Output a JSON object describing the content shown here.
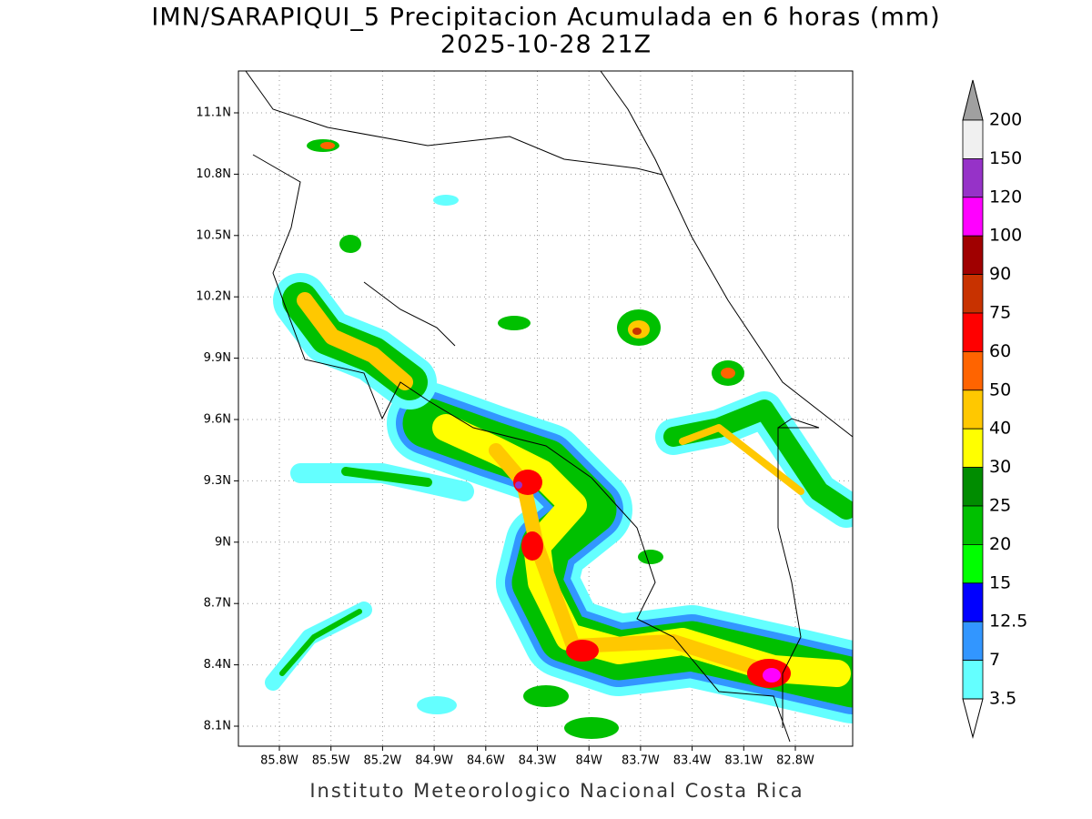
{
  "header": {
    "title": "IMN/SARAPIQUI_5 Precipitacion Acumulada en 6 horas (mm)",
    "subtitle": "2025-10-28 21Z"
  },
  "map": {
    "lat_labels": [
      "11.1N",
      "10.8N",
      "10.5N",
      "10.2N",
      "9.9N",
      "9.6N",
      "9.3N",
      "9N",
      "8.7N",
      "8.4N",
      "8.1N"
    ],
    "lon_labels": [
      "85.8W",
      "85.5W",
      "85.2W",
      "84.9W",
      "84.6W",
      "84.3W",
      "84W",
      "83.7W",
      "83.4W",
      "83.1W",
      "82.8W"
    ]
  },
  "colorbar": {
    "labels": [
      "200",
      "150",
      "120",
      "100",
      "90",
      "75",
      "60",
      "50",
      "40",
      "30",
      "25",
      "20",
      "15",
      "12.5",
      "7",
      "3.5"
    ],
    "colors": [
      "#f0f0f0",
      "#9632c8",
      "#ff00ff",
      "#a00000",
      "#c83200",
      "#ff0000",
      "#ff6400",
      "#ffc800",
      "#ffff00",
      "#008c00",
      "#00c000",
      "#00ff00",
      "#0000ff",
      "#3296ff",
      "#64ffff"
    ],
    "over_color": "#a0a0a0",
    "under_color": "#ffffff"
  },
  "footer": "Instituto Meteorologico Nacional Costa Rica"
}
